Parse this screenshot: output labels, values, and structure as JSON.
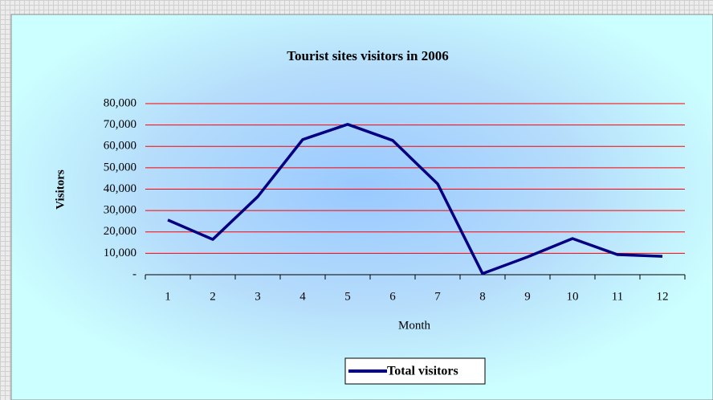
{
  "chart_data": {
    "type": "line",
    "title": "Tourist sites visitors in 2006",
    "x_label": "Month",
    "y_label": "Visitors",
    "categories": [
      "1",
      "2",
      "3",
      "4",
      "5",
      "6",
      "7",
      "8",
      "9",
      "10",
      "11",
      "12"
    ],
    "series": [
      {
        "name": "Total visitors",
        "color": "#000080",
        "values": [
          25600,
          16500,
          36500,
          63200,
          70300,
          62800,
          42500,
          500,
          8300,
          16900,
          9400,
          8600
        ]
      }
    ],
    "ylim": [
      0,
      80000
    ],
    "yticks": [
      {
        "value": 0,
        "label": "-"
      },
      {
        "value": 10000,
        "label": "10,000"
      },
      {
        "value": 20000,
        "label": "20,000"
      },
      {
        "value": 30000,
        "label": "30,000"
      },
      {
        "value": 40000,
        "label": "40,000"
      },
      {
        "value": 50000,
        "label": "50,000"
      },
      {
        "value": 60000,
        "label": "60,000"
      },
      {
        "value": 70000,
        "label": "70,000"
      },
      {
        "value": 80000,
        "label": "80,000"
      }
    ],
    "grid": true,
    "grid_color": "#ff0000",
    "legend": "bottom"
  }
}
